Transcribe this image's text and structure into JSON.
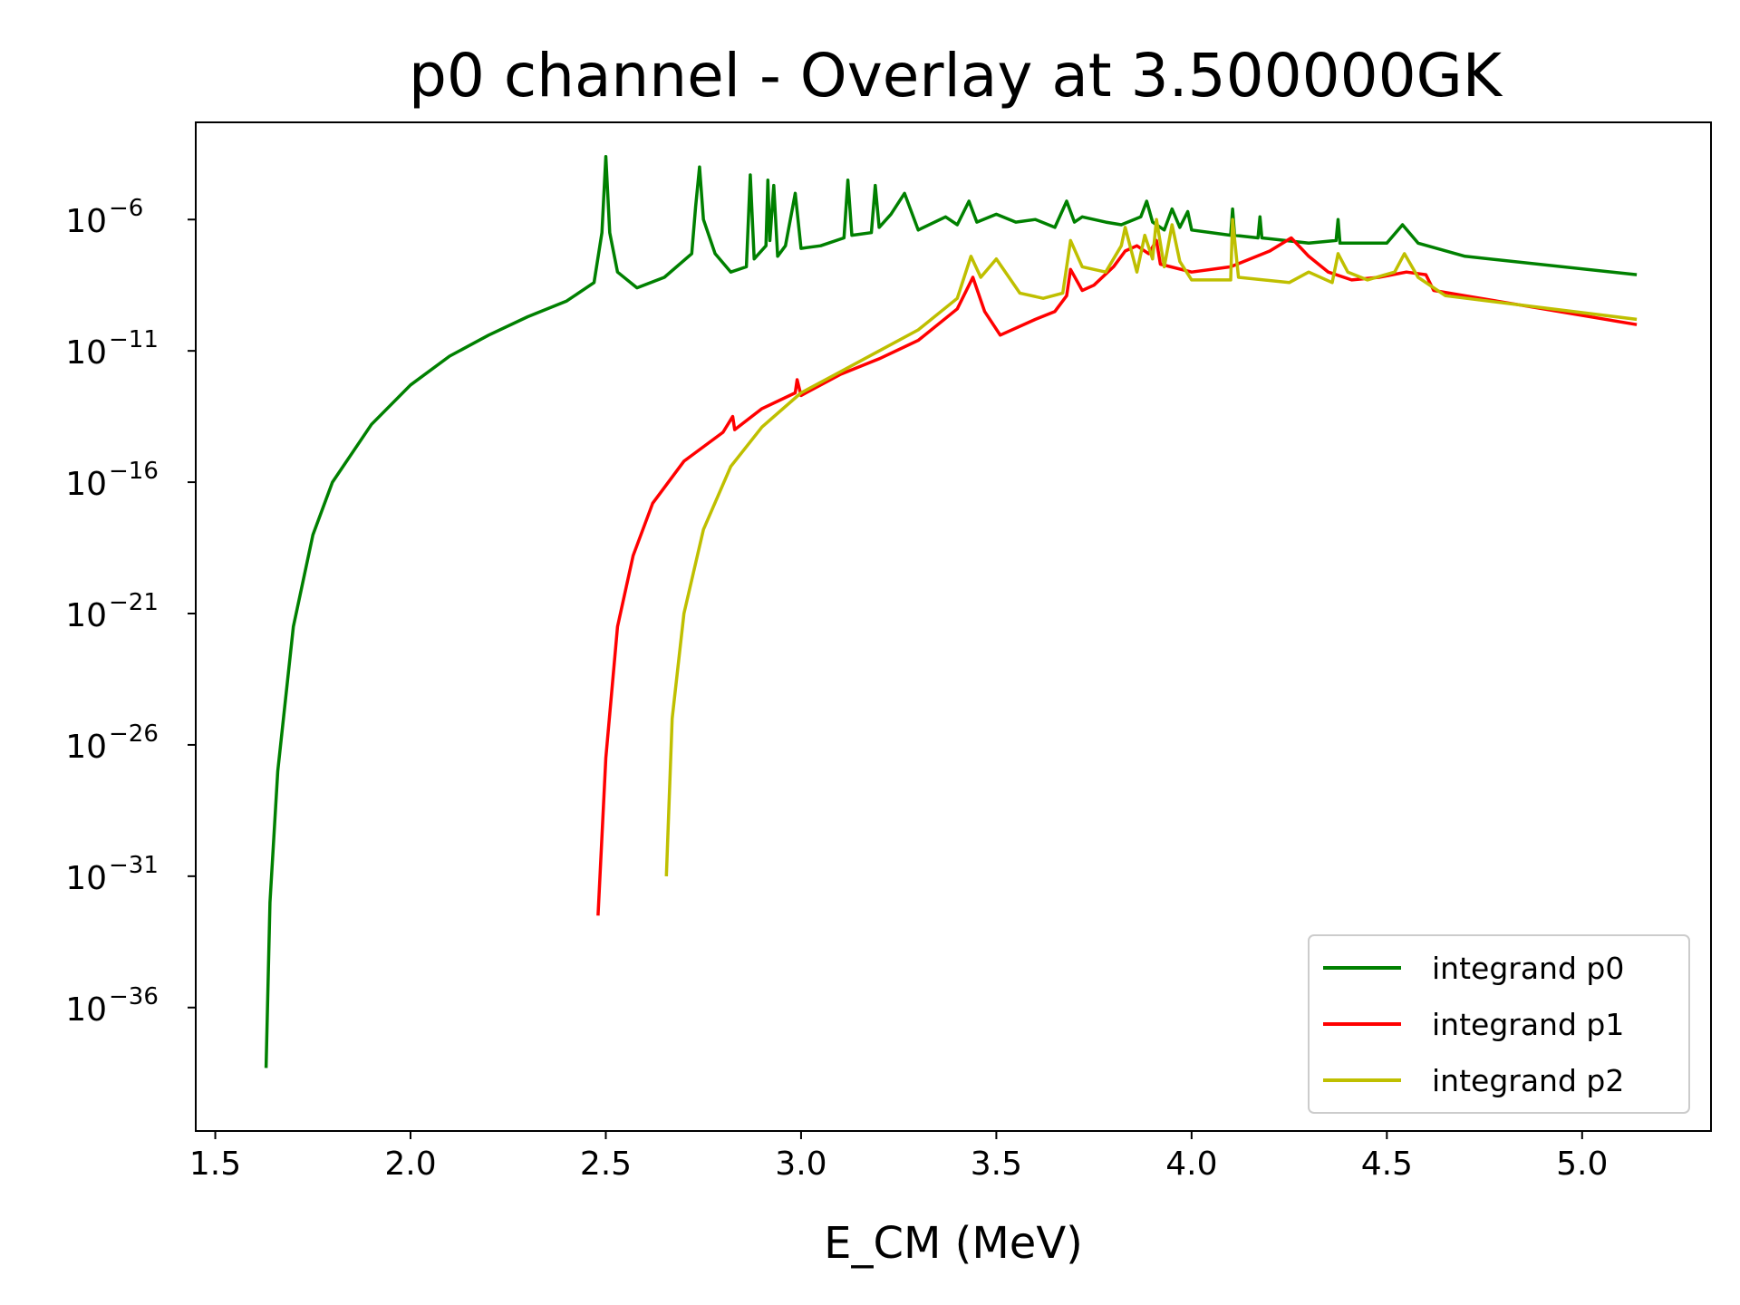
{
  "chart_data": {
    "type": "line",
    "title": "p0 channel - Overlay at 3.500000GK",
    "xlabel": "E_CM (MeV)",
    "ylabel": "",
    "y_scale": "log",
    "xlim": [
      1.45,
      5.33
    ],
    "ylim_exp": [
      -40.7,
      -2.3
    ],
    "x_ticks": [
      {
        "value": 1.5,
        "label": "1.5"
      },
      {
        "value": 2.0,
        "label": "2.0"
      },
      {
        "value": 2.5,
        "label": "2.5"
      },
      {
        "value": 3.0,
        "label": "3.0"
      },
      {
        "value": 3.5,
        "label": "3.5"
      },
      {
        "value": 4.0,
        "label": "4.0"
      },
      {
        "value": 4.5,
        "label": "4.5"
      },
      {
        "value": 5.0,
        "label": "5.0"
      }
    ],
    "y_ticks": [
      {
        "exp": -6,
        "base": "10",
        "power": "−6"
      },
      {
        "exp": -11,
        "base": "10",
        "power": "−11"
      },
      {
        "exp": -16,
        "base": "10",
        "power": "−16"
      },
      {
        "exp": -21,
        "base": "10",
        "power": "−21"
      },
      {
        "exp": -26,
        "base": "10",
        "power": "−26"
      },
      {
        "exp": -31,
        "base": "10",
        "power": "−31"
      },
      {
        "exp": -36,
        "base": "10",
        "power": "−36"
      }
    ],
    "grid": false,
    "legend": "bottom-right",
    "series": [
      {
        "name": "integrand p0",
        "color": "#008000",
        "points": [
          [
            1.63,
            -38.3
          ],
          [
            1.64,
            -32.0
          ],
          [
            1.66,
            -27.0
          ],
          [
            1.7,
            -21.5
          ],
          [
            1.75,
            -18.0
          ],
          [
            1.8,
            -16.0
          ],
          [
            1.9,
            -13.8
          ],
          [
            2.0,
            -12.3
          ],
          [
            2.1,
            -11.2
          ],
          [
            2.2,
            -10.4
          ],
          [
            2.3,
            -9.7
          ],
          [
            2.4,
            -9.1
          ],
          [
            2.47,
            -8.4
          ],
          [
            2.49,
            -6.5
          ],
          [
            2.5,
            -3.6
          ],
          [
            2.51,
            -6.5
          ],
          [
            2.53,
            -8.0
          ],
          [
            2.58,
            -8.6
          ],
          [
            2.65,
            -8.2
          ],
          [
            2.72,
            -7.3
          ],
          [
            2.73,
            -5.5
          ],
          [
            2.74,
            -4.0
          ],
          [
            2.75,
            -6.0
          ],
          [
            2.78,
            -7.3
          ],
          [
            2.82,
            -8.0
          ],
          [
            2.86,
            -7.8
          ],
          [
            2.87,
            -4.3
          ],
          [
            2.88,
            -7.5
          ],
          [
            2.91,
            -7.0
          ],
          [
            2.915,
            -4.5
          ],
          [
            2.92,
            -6.8
          ],
          [
            2.93,
            -4.7
          ],
          [
            2.94,
            -7.4
          ],
          [
            2.96,
            -7.0
          ],
          [
            2.985,
            -5.0
          ],
          [
            3.0,
            -7.1
          ],
          [
            3.05,
            -7.0
          ],
          [
            3.11,
            -6.7
          ],
          [
            3.12,
            -4.5
          ],
          [
            3.13,
            -6.6
          ],
          [
            3.18,
            -6.5
          ],
          [
            3.19,
            -4.7
          ],
          [
            3.2,
            -6.3
          ],
          [
            3.23,
            -5.8
          ],
          [
            3.265,
            -5.0
          ],
          [
            3.3,
            -6.4
          ],
          [
            3.37,
            -5.9
          ],
          [
            3.4,
            -6.2
          ],
          [
            3.43,
            -5.3
          ],
          [
            3.45,
            -6.1
          ],
          [
            3.5,
            -5.8
          ],
          [
            3.55,
            -6.1
          ],
          [
            3.6,
            -6.0
          ],
          [
            3.65,
            -6.3
          ],
          [
            3.68,
            -5.3
          ],
          [
            3.7,
            -6.1
          ],
          [
            3.72,
            -5.9
          ],
          [
            3.78,
            -6.1
          ],
          [
            3.82,
            -6.2
          ],
          [
            3.87,
            -5.9
          ],
          [
            3.885,
            -5.3
          ],
          [
            3.9,
            -6.1
          ],
          [
            3.93,
            -6.4
          ],
          [
            3.95,
            -5.6
          ],
          [
            3.97,
            -6.3
          ],
          [
            3.99,
            -5.7
          ],
          [
            4.0,
            -6.4
          ],
          [
            4.1,
            -6.6
          ],
          [
            4.105,
            -5.6
          ],
          [
            4.11,
            -6.6
          ],
          [
            4.17,
            -6.7
          ],
          [
            4.175,
            -5.9
          ],
          [
            4.18,
            -6.7
          ],
          [
            4.3,
            -6.9
          ],
          [
            4.37,
            -6.8
          ],
          [
            4.375,
            -6.0
          ],
          [
            4.38,
            -6.9
          ],
          [
            4.5,
            -6.9
          ],
          [
            4.54,
            -6.2
          ],
          [
            4.58,
            -6.9
          ],
          [
            4.7,
            -7.4
          ],
          [
            5.14,
            -8.1
          ]
        ]
      },
      {
        "name": "integrand p1",
        "color": "#ff0000",
        "points": [
          [
            2.48,
            -32.5
          ],
          [
            2.5,
            -26.5
          ],
          [
            2.53,
            -21.5
          ],
          [
            2.57,
            -18.8
          ],
          [
            2.62,
            -16.8
          ],
          [
            2.7,
            -15.2
          ],
          [
            2.8,
            -14.1
          ],
          [
            2.825,
            -13.5
          ],
          [
            2.83,
            -14.0
          ],
          [
            2.9,
            -13.2
          ],
          [
            2.985,
            -12.6
          ],
          [
            2.99,
            -12.1
          ],
          [
            3.0,
            -12.7
          ],
          [
            3.1,
            -11.9
          ],
          [
            3.2,
            -11.3
          ],
          [
            3.3,
            -10.6
          ],
          [
            3.4,
            -9.4
          ],
          [
            3.44,
            -8.2
          ],
          [
            3.47,
            -9.5
          ],
          [
            3.51,
            -10.4
          ],
          [
            3.6,
            -9.8
          ],
          [
            3.65,
            -9.5
          ],
          [
            3.68,
            -8.9
          ],
          [
            3.69,
            -7.9
          ],
          [
            3.72,
            -8.7
          ],
          [
            3.75,
            -8.5
          ],
          [
            3.8,
            -7.8
          ],
          [
            3.83,
            -7.2
          ],
          [
            3.86,
            -7.0
          ],
          [
            3.89,
            -7.3
          ],
          [
            3.91,
            -6.8
          ],
          [
            3.92,
            -7.7
          ],
          [
            4.0,
            -8.0
          ],
          [
            4.1,
            -7.8
          ],
          [
            4.2,
            -7.2
          ],
          [
            4.255,
            -6.7
          ],
          [
            4.3,
            -7.4
          ],
          [
            4.35,
            -8.0
          ],
          [
            4.41,
            -8.3
          ],
          [
            4.48,
            -8.2
          ],
          [
            4.55,
            -8.0
          ],
          [
            4.6,
            -8.1
          ],
          [
            4.62,
            -8.7
          ],
          [
            4.7,
            -8.9
          ],
          [
            5.14,
            -10.0
          ]
        ]
      },
      {
        "name": "integrand p2",
        "color": "#bfbf00",
        "points": [
          [
            2.655,
            -31.0
          ],
          [
            2.67,
            -25.0
          ],
          [
            2.7,
            -21.0
          ],
          [
            2.75,
            -17.8
          ],
          [
            2.82,
            -15.4
          ],
          [
            2.9,
            -13.9
          ],
          [
            3.0,
            -12.6
          ],
          [
            3.1,
            -11.8
          ],
          [
            3.2,
            -11.0
          ],
          [
            3.3,
            -10.2
          ],
          [
            3.4,
            -9.0
          ],
          [
            3.435,
            -7.4
          ],
          [
            3.46,
            -8.2
          ],
          [
            3.5,
            -7.5
          ],
          [
            3.56,
            -8.8
          ],
          [
            3.62,
            -9.0
          ],
          [
            3.67,
            -8.8
          ],
          [
            3.69,
            -6.8
          ],
          [
            3.72,
            -7.8
          ],
          [
            3.78,
            -8.0
          ],
          [
            3.82,
            -7.0
          ],
          [
            3.83,
            -6.3
          ],
          [
            3.86,
            -8.0
          ],
          [
            3.88,
            -6.6
          ],
          [
            3.9,
            -7.5
          ],
          [
            3.91,
            -6.0
          ],
          [
            3.93,
            -7.8
          ],
          [
            3.95,
            -6.2
          ],
          [
            3.97,
            -7.6
          ],
          [
            4.0,
            -8.3
          ],
          [
            4.1,
            -8.3
          ],
          [
            4.105,
            -6.0
          ],
          [
            4.12,
            -8.2
          ],
          [
            4.25,
            -8.4
          ],
          [
            4.3,
            -8.0
          ],
          [
            4.36,
            -8.4
          ],
          [
            4.375,
            -7.3
          ],
          [
            4.4,
            -8.0
          ],
          [
            4.45,
            -8.3
          ],
          [
            4.52,
            -8.0
          ],
          [
            4.545,
            -7.3
          ],
          [
            4.58,
            -8.2
          ],
          [
            4.65,
            -8.9
          ],
          [
            5.14,
            -9.8
          ]
        ]
      }
    ]
  }
}
